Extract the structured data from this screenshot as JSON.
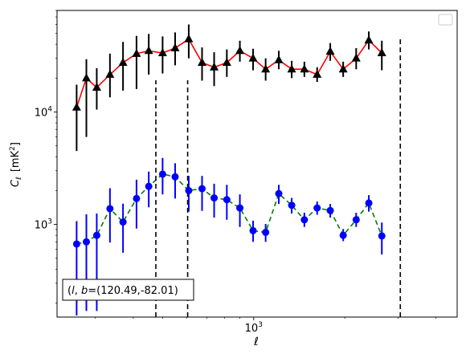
{
  "chart_data": {
    "type": "scatter",
    "xlabel": "ℓ",
    "ylabel_main": "C",
    "ylabel_sub": "ℓ",
    "ylabel_unit": "[mK",
    "ylabel_unit_sup": "2",
    "ylabel_unit_end": "]",
    "x_scale": "log",
    "y_scale": "log",
    "xlim": [
      224,
      4700
    ],
    "ylim": [
      150,
      80000
    ],
    "x_tick_labels": [
      {
        "base": "10",
        "exp": "3",
        "value": 1000
      }
    ],
    "y_tick_labels": [
      {
        "base": "10",
        "exp": "3",
        "value": 1000
      },
      {
        "base": "10",
        "exp": "4",
        "value": 10000
      }
    ],
    "legend": {
      "position": "upper right",
      "entries": []
    },
    "annotation": "(l, b)=(120.49,-82.01)",
    "annotation_parts": {
      "var_l": "l",
      "var_b": "b",
      "coords": "=(120.49,-82.01)"
    },
    "vlines": [
      475,
      605,
      3050
    ],
    "series": [
      {
        "marker": "triangle",
        "color": "#000000",
        "line_color": "#ff0000",
        "line_style": "solid",
        "errorbar_color": "#000000",
        "points": [
          {
            "x": 260,
            "y": 11000,
            "lo": 4500,
            "hi": 17500
          },
          {
            "x": 280,
            "y": 20000,
            "lo": 6000,
            "hi": 29500
          },
          {
            "x": 303,
            "y": 16500,
            "lo": 10500,
            "hi": 24500
          },
          {
            "x": 335,
            "y": 21500,
            "lo": 13500,
            "hi": 33000
          },
          {
            "x": 370,
            "y": 27500,
            "lo": 15500,
            "hi": 42000
          },
          {
            "x": 410,
            "y": 33000,
            "lo": 16000,
            "hi": 47500
          },
          {
            "x": 450,
            "y": 35000,
            "lo": 21500,
            "hi": 49500
          },
          {
            "x": 500,
            "y": 33500,
            "lo": 22000,
            "hi": 47000
          },
          {
            "x": 550,
            "y": 37000,
            "lo": 26000,
            "hi": 51000
          },
          {
            "x": 610,
            "y": 44500,
            "lo": 30000,
            "hi": 60000
          },
          {
            "x": 675,
            "y": 27500,
            "lo": 19000,
            "hi": 37500
          },
          {
            "x": 740,
            "y": 25000,
            "lo": 17000,
            "hi": 34000
          },
          {
            "x": 815,
            "y": 27500,
            "lo": 20500,
            "hi": 36000
          },
          {
            "x": 900,
            "y": 35000,
            "lo": 28000,
            "hi": 43000
          },
          {
            "x": 995,
            "y": 30000,
            "lo": 23500,
            "hi": 36500
          },
          {
            "x": 1095,
            "y": 24000,
            "lo": 19000,
            "hi": 30000
          },
          {
            "x": 1210,
            "y": 29000,
            "lo": 24000,
            "hi": 35000
          },
          {
            "x": 1335,
            "y": 24000,
            "lo": 20000,
            "hi": 28500
          },
          {
            "x": 1470,
            "y": 24000,
            "lo": 20500,
            "hi": 28000
          },
          {
            "x": 1620,
            "y": 21500,
            "lo": 18500,
            "hi": 25000
          },
          {
            "x": 1790,
            "y": 34500,
            "lo": 28500,
            "hi": 41000
          },
          {
            "x": 1975,
            "y": 24000,
            "lo": 20500,
            "hi": 28000
          },
          {
            "x": 2180,
            "y": 30000,
            "lo": 24000,
            "hi": 37000
          },
          {
            "x": 2400,
            "y": 43500,
            "lo": 36000,
            "hi": 52000
          },
          {
            "x": 2650,
            "y": 33500,
            "lo": 23500,
            "hi": 43000
          }
        ]
      },
      {
        "marker": "circle",
        "color": "#0000ff",
        "line_color": "#008000",
        "line_style": "dashed",
        "errorbar_color": "#0000ff",
        "points": [
          {
            "x": 260,
            "y": 670,
            "lo": 155,
            "hi": 1070
          },
          {
            "x": 280,
            "y": 700,
            "lo": 170,
            "hi": 1230
          },
          {
            "x": 303,
            "y": 800,
            "lo": 170,
            "hi": 1250
          },
          {
            "x": 335,
            "y": 1380,
            "lo": 690,
            "hi": 2100
          },
          {
            "x": 370,
            "y": 1050,
            "lo": 560,
            "hi": 1530
          },
          {
            "x": 410,
            "y": 1700,
            "lo": 920,
            "hi": 2500
          },
          {
            "x": 450,
            "y": 2180,
            "lo": 1420,
            "hi": 2950
          },
          {
            "x": 500,
            "y": 2800,
            "lo": 1850,
            "hi": 3900
          },
          {
            "x": 550,
            "y": 2650,
            "lo": 1700,
            "hi": 3500
          },
          {
            "x": 610,
            "y": 2000,
            "lo": 1300,
            "hi": 2700
          },
          {
            "x": 675,
            "y": 2080,
            "lo": 1320,
            "hi": 2700
          },
          {
            "x": 740,
            "y": 1720,
            "lo": 1150,
            "hi": 2300
          },
          {
            "x": 815,
            "y": 1660,
            "lo": 1100,
            "hi": 2250
          },
          {
            "x": 900,
            "y": 1400,
            "lo": 950,
            "hi": 1850
          },
          {
            "x": 995,
            "y": 880,
            "lo": 700,
            "hi": 1080
          },
          {
            "x": 1095,
            "y": 850,
            "lo": 700,
            "hi": 1010
          },
          {
            "x": 1210,
            "y": 1880,
            "lo": 1520,
            "hi": 2250
          },
          {
            "x": 1335,
            "y": 1480,
            "lo": 1250,
            "hi": 1720
          },
          {
            "x": 1470,
            "y": 1100,
            "lo": 950,
            "hi": 1270
          },
          {
            "x": 1620,
            "y": 1400,
            "lo": 1220,
            "hi": 1600
          },
          {
            "x": 1790,
            "y": 1330,
            "lo": 1150,
            "hi": 1520
          },
          {
            "x": 1975,
            "y": 800,
            "lo": 710,
            "hi": 910
          },
          {
            "x": 2180,
            "y": 1100,
            "lo": 950,
            "hi": 1270
          },
          {
            "x": 2400,
            "y": 1550,
            "lo": 1300,
            "hi": 1820
          },
          {
            "x": 2650,
            "y": 790,
            "lo": 540,
            "hi": 1040
          }
        ]
      }
    ]
  }
}
